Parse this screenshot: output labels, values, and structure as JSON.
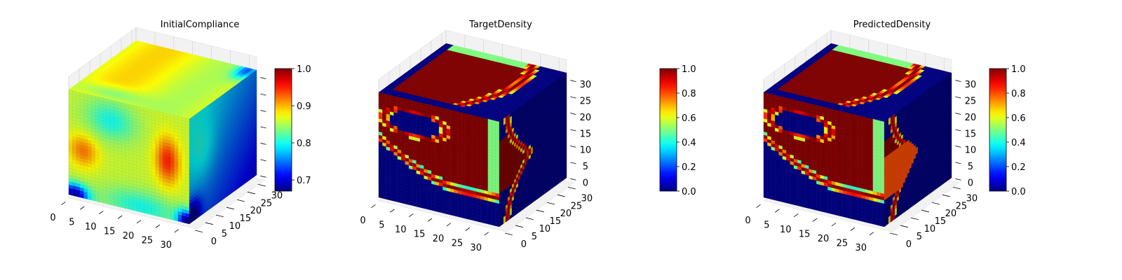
{
  "figure": {
    "colormap": "jet",
    "colormap_stops": [
      "#00007f",
      "#0000ff",
      "#007fff",
      "#00ffff",
      "#7fff7f",
      "#ffff00",
      "#ff7f00",
      "#ff0000",
      "#7f0000"
    ],
    "pane_color": "#f2f2f2",
    "grid_color": "#d0d0d0"
  },
  "chart_data": [
    {
      "type": "3d-voxel",
      "title": "InitialCompliance",
      "axes": {
        "x": [
          0,
          32
        ],
        "y": [
          0,
          32
        ],
        "z": [
          0,
          32
        ]
      },
      "xticks": [
        "0",
        "5",
        "10",
        "15",
        "20",
        "25",
        "30"
      ],
      "yticks": [
        "0",
        "5",
        "10",
        "15",
        "20",
        "25",
        "30"
      ],
      "zticks": [],
      "voxel_grid": 32,
      "colorbar": {
        "range": [
          0.67,
          1.0
        ],
        "ticks": [
          0.7,
          0.8,
          0.9,
          1.0
        ],
        "tick_labels": [
          "0.7",
          "0.8",
          "0.9",
          "1.0"
        ]
      },
      "field": "compliance"
    },
    {
      "type": "3d-voxel",
      "title": "TargetDensity",
      "axes": {
        "x": [
          0,
          32
        ],
        "y": [
          0,
          32
        ],
        "z": [
          0,
          32
        ]
      },
      "xticks": [
        "0",
        "5",
        "10",
        "15",
        "20",
        "25",
        "30"
      ],
      "yticks": [
        "0",
        "5",
        "10",
        "15",
        "20",
        "25",
        "30"
      ],
      "zticks": [
        "0",
        "5",
        "10",
        "15",
        "20",
        "25",
        "30"
      ],
      "voxel_grid": 32,
      "colorbar": {
        "range": [
          0.0,
          1.0
        ],
        "ticks": [
          0.0,
          0.2,
          0.4,
          0.6,
          0.8,
          1.0
        ],
        "tick_labels": [
          "0.0",
          "0.2",
          "0.4",
          "0.6",
          "0.8",
          "1.0"
        ]
      },
      "field": "density"
    },
    {
      "type": "3d-voxel",
      "title": "PredictedDensity",
      "axes": {
        "x": [
          0,
          32
        ],
        "y": [
          0,
          32
        ],
        "z": [
          0,
          32
        ]
      },
      "xticks": [
        "0",
        "5",
        "10",
        "15",
        "20",
        "25",
        "30"
      ],
      "yticks": [
        "0",
        "5",
        "10",
        "15",
        "20",
        "25",
        "30"
      ],
      "zticks": [
        "0",
        "5",
        "10",
        "15",
        "20",
        "25",
        "30"
      ],
      "voxel_grid": 32,
      "colorbar": {
        "range": [
          0.0,
          1.0
        ],
        "ticks": [
          0.0,
          0.2,
          0.4,
          0.6,
          0.8,
          1.0
        ],
        "tick_labels": [
          "0.0",
          "0.2",
          "0.4",
          "0.6",
          "0.8",
          "1.0"
        ]
      },
      "field": "density"
    }
  ]
}
